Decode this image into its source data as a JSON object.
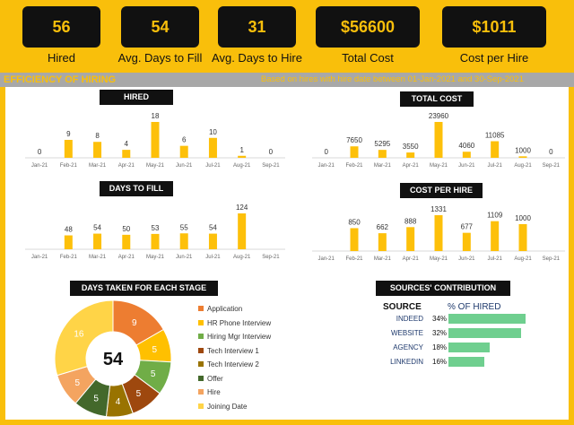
{
  "kpis": [
    {
      "value": "56",
      "label": "Hired"
    },
    {
      "value": "54",
      "label": "Avg. Days to Fill"
    },
    {
      "value": "31",
      "label": "Avg. Days to Hire"
    },
    {
      "value": "$56600",
      "label": "Total Cost"
    },
    {
      "value": "$1011",
      "label": "Cost per Hire"
    }
  ],
  "banner": {
    "title": "EFFICIENCY OF HIRING",
    "note": "Based on hires with hire date between 01-Jan-2021 and 30-Sep-2021"
  },
  "colors": {
    "accent": "#F9BF0B",
    "bar": "#FDC00A",
    "title_bg": "#111111",
    "source_bar": "#6FCF8F"
  },
  "chart_data": [
    {
      "type": "bar",
      "title": "HIRED",
      "categories": [
        "Jan-21",
        "Feb-21",
        "Mar-21",
        "Apr-21",
        "May-21",
        "Jun-21",
        "Jul-21",
        "Aug-21",
        "Sep-21"
      ],
      "values": [
        0,
        9,
        8,
        4,
        18,
        6,
        10,
        1,
        0
      ],
      "labels": [
        "0",
        "9",
        "8",
        "4",
        "18",
        "6",
        "10",
        "1",
        "0"
      ]
    },
    {
      "type": "bar",
      "title": "TOTAL COST",
      "categories": [
        "Jan-21",
        "Feb-21",
        "Mar-21",
        "Apr-21",
        "May-21",
        "Jun-21",
        "Jul-21",
        "Aug-21",
        "Sep-21"
      ],
      "values": [
        0,
        7650,
        5295,
        3550,
        23960,
        4060,
        11085,
        1000,
        0
      ],
      "labels": [
        "0",
        "7650",
        "5295",
        "3550",
        "23960",
        "4060",
        "11085",
        "1000",
        "0"
      ]
    },
    {
      "type": "bar",
      "title": "DAYS TO FILL",
      "categories": [
        "Jan-21",
        "Feb-21",
        "Mar-21",
        "Apr-21",
        "May-21",
        "Jun-21",
        "Jul-21",
        "Aug-21",
        "Sep-21"
      ],
      "values": [
        null,
        48,
        54,
        50,
        53,
        55,
        54,
        124,
        null
      ],
      "labels": [
        "",
        "48",
        "54",
        "50",
        "53",
        "55",
        "54",
        "124",
        ""
      ]
    },
    {
      "type": "bar",
      "title": "COST PER HIRE",
      "categories": [
        "Jan-21",
        "Feb-21",
        "Mar-21",
        "Apr-21",
        "May-21",
        "Jun-21",
        "Jul-21",
        "Aug-21",
        "Sep-21"
      ],
      "values": [
        null,
        850,
        662,
        888,
        1331,
        677,
        1109,
        1000,
        null
      ],
      "labels": [
        "",
        "850",
        "662",
        "888",
        "1331",
        "677",
        "1109",
        "1000",
        ""
      ]
    },
    {
      "type": "pie",
      "title": "DAYS TAKEN FOR EACH STAGE",
      "center_label": "54",
      "categories": [
        "Application",
        "HR Phone Interview",
        "Hiring Mgr Interview",
        "Tech Interview 1",
        "Tech Interview 2",
        "Offer",
        "Hire",
        "Joining Date"
      ],
      "values": [
        9,
        5,
        5,
        5,
        4,
        5,
        5,
        16
      ],
      "colors": [
        "#ED7D31",
        "#FFC000",
        "#70AD47",
        "#9E480E",
        "#997300",
        "#43682B",
        "#F4A460",
        "#FFD447"
      ]
    },
    {
      "type": "bar",
      "title": "SOURCES' CONTRIBUTION",
      "orientation": "horizontal",
      "headers": [
        "SOURCE",
        "% OF HIRED"
      ],
      "categories": [
        "INDEED",
        "WEBSITE",
        "AGENCY",
        "LINKEDIN"
      ],
      "values": [
        34,
        32,
        18,
        16
      ],
      "labels": [
        "34%",
        "32%",
        "18%",
        "16%"
      ]
    }
  ]
}
